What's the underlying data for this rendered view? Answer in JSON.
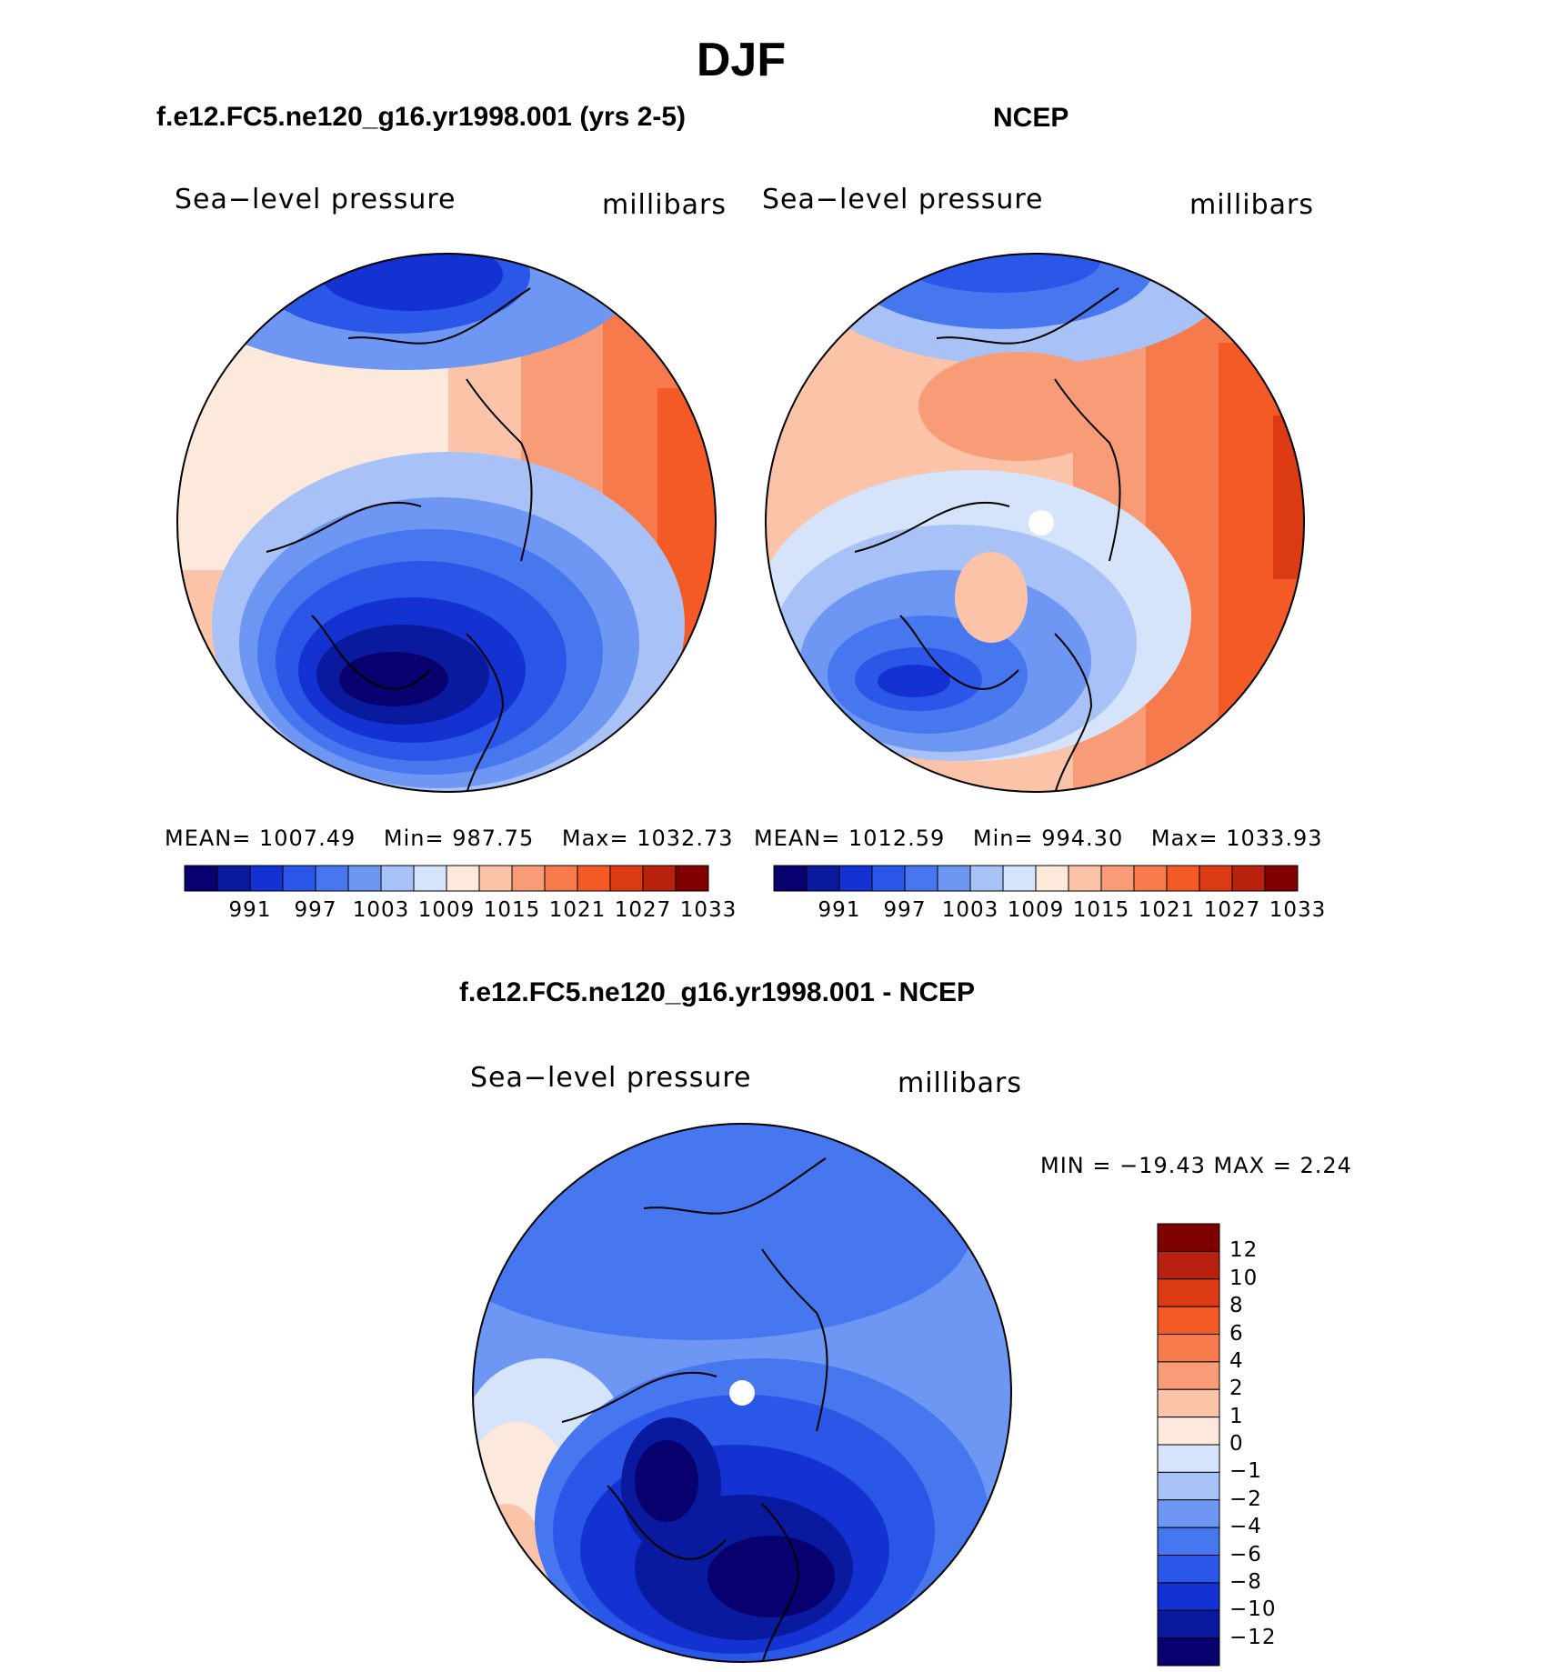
{
  "title": "DJF",
  "panels": [
    {
      "id": "model",
      "title": "f.e12.FC5.ne120_g16.yr1998.001 (yrs 2-5)",
      "variable": "Sea−level pressure",
      "units": "millibars",
      "stats": {
        "mean_label": "MEAN=",
        "mean": "1007.49",
        "min_label": "Min=",
        "min": "987.75",
        "max_label": "Max=",
        "max": "1032.73"
      },
      "colorbar_labels": [
        "991",
        "997",
        "1003",
        "1009",
        "1015",
        "1021",
        "1027",
        "1033"
      ]
    },
    {
      "id": "ncep",
      "title": "NCEP",
      "variable": "Sea−level pressure",
      "units": "millibars",
      "stats": {
        "mean_label": "MEAN=",
        "mean": "1012.59",
        "min_label": "Min=",
        "min": "994.30",
        "max_label": "Max=",
        "max": "1033.93"
      },
      "colorbar_labels": [
        "991",
        "997",
        "1003",
        "1009",
        "1015",
        "1021",
        "1027",
        "1033"
      ]
    },
    {
      "id": "difference",
      "title": "f.e12.FC5.ne120_g16.yr1998.001 - NCEP",
      "variable": "Sea−level pressure",
      "units": "millibars",
      "stats": {
        "text": "MIN = −19.43 MAX =    2.24"
      },
      "colorbar_labels": [
        "12",
        "10",
        "8",
        "6",
        "4",
        "2",
        "1",
        "0",
        "−1",
        "−2",
        "−4",
        "−6",
        "−8",
        "−10",
        "−12"
      ]
    }
  ],
  "colors": {
    "abs_scale": [
      "#08006e",
      "#0a1a9e",
      "#1432d2",
      "#2a57e8",
      "#4677ef",
      "#6e97f4",
      "#a8c2f7",
      "#d5e4fb",
      "#fde8dc",
      "#fbc3a8",
      "#f89c78",
      "#f67a4c",
      "#f35a26",
      "#dd3b13",
      "#b8210e",
      "#800000"
    ],
    "diff_scale": [
      "#08006e",
      "#0a1a9e",
      "#1432d2",
      "#2a57e8",
      "#4677ef",
      "#6e97f4",
      "#a8c2f7",
      "#d5e4fb",
      "#fde8dc",
      "#fbc3a8",
      "#f89c78",
      "#f67a4c",
      "#f35a26",
      "#dd3b13",
      "#b8210e",
      "#800000"
    ]
  }
}
